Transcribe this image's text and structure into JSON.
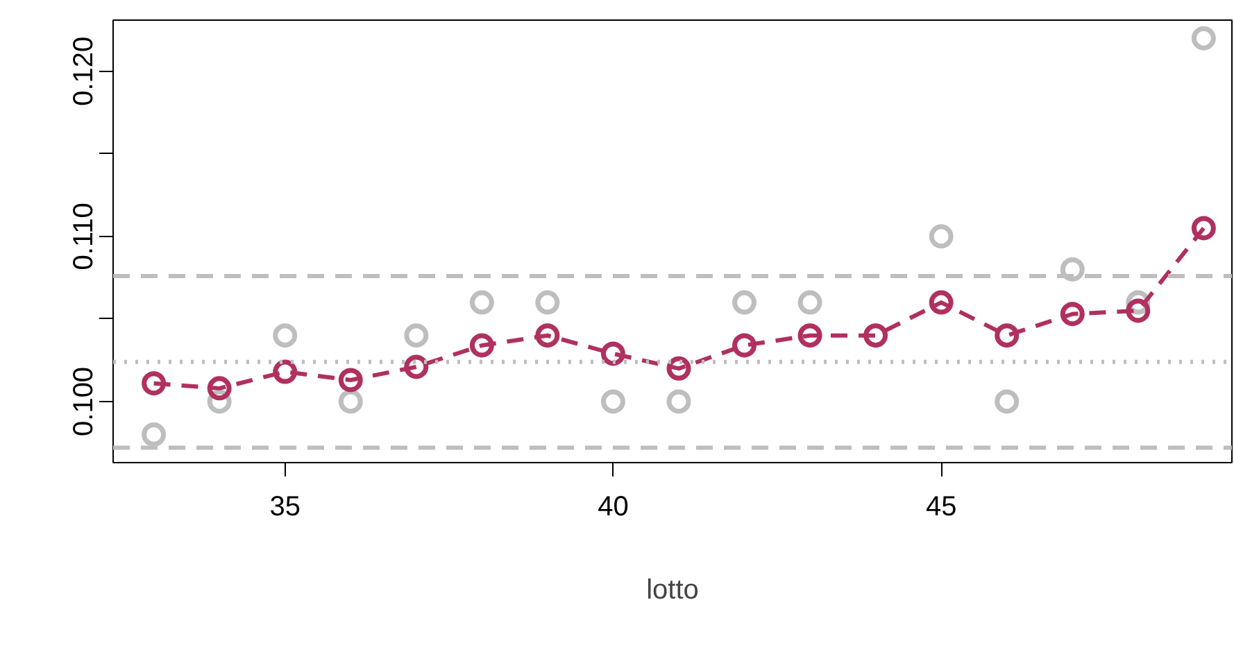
{
  "chart_data": {
    "type": "line",
    "xlabel": "lotto",
    "x": [
      33,
      34,
      35,
      36,
      37,
      38,
      39,
      40,
      41,
      42,
      43,
      44,
      45,
      46,
      47,
      48,
      49
    ],
    "series": [
      {
        "type": "scatter",
        "color": "#bebebe",
        "values": [
          0.098,
          0.1,
          0.104,
          0.1,
          0.104,
          0.106,
          0.106,
          0.1,
          0.1,
          0.106,
          0.106,
          null,
          0.11,
          0.1,
          0.108,
          0.106,
          0.122
        ]
      },
      {
        "color": "#b03060",
        "line_style": "dashed",
        "values": [
          0.1011,
          0.1008,
          0.1018,
          0.1013,
          0.1021,
          0.1034,
          0.104,
          0.1029,
          0.102,
          0.1034,
          0.104,
          0.104,
          0.106,
          0.104,
          0.1053,
          0.1055,
          0.1105
        ]
      }
    ],
    "marker": "circle",
    "ref_lines": [
      {
        "axis": "y",
        "value": 0.1076,
        "color": "#bebebe",
        "line_style": "dashed"
      },
      {
        "axis": "y",
        "value": 0.1024,
        "color": "#bebebe",
        "line_style": "dotted"
      },
      {
        "axis": "y",
        "value": 0.0972,
        "color": "#bebebe",
        "line_style": "dashed"
      }
    ],
    "xlim": [
      32.38,
      49.43
    ],
    "ylim": [
      0.0963,
      0.1231
    ],
    "xticks": [
      35,
      40,
      45
    ],
    "yticks": [
      {
        "value": 0.1,
        "label": "0.100"
      },
      {
        "value": 0.105,
        "label": null
      },
      {
        "value": 0.11,
        "label": "0.110"
      },
      {
        "value": 0.115,
        "label": null
      },
      {
        "value": 0.12,
        "label": "0.120"
      }
    ],
    "grid": false
  }
}
